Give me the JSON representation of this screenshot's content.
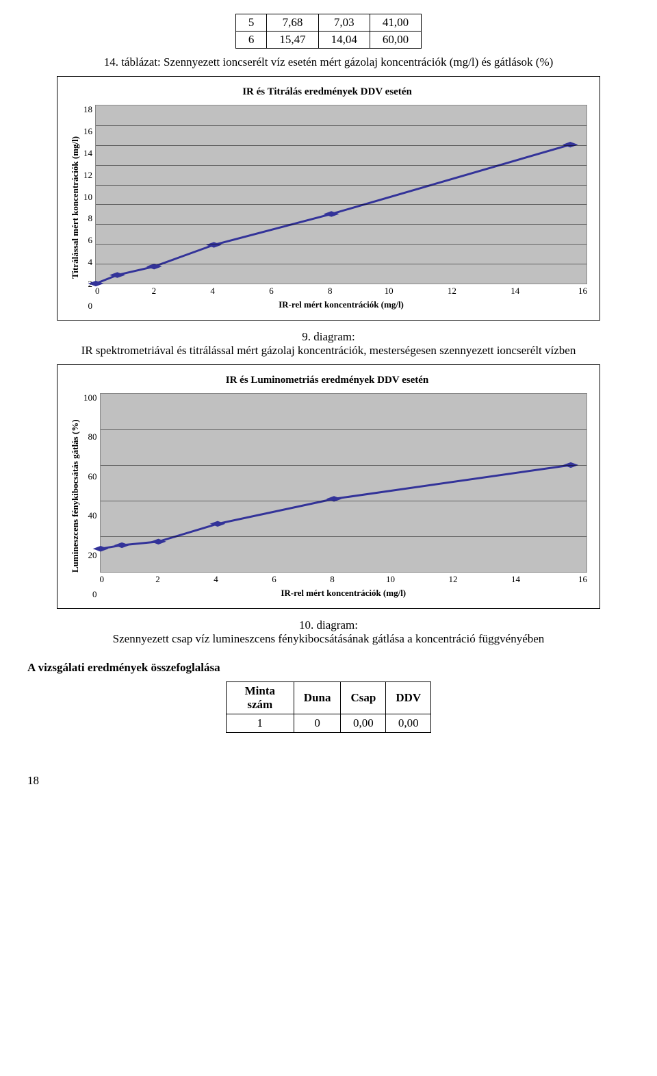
{
  "top_table": {
    "rows": [
      [
        "5",
        "7,68",
        "7,03",
        "41,00"
      ],
      [
        "6",
        "15,47",
        "14,04",
        "60,00"
      ]
    ]
  },
  "caption1": "14. táblázat: Szennyezett ioncserélt víz esetén mért gázolaj koncentrációk (mg/l) és gátlások (%)",
  "chart1": {
    "title": "IR és Titrálás eredmények DDV esetén",
    "ylabel": "Titrálással mért koncentrációk (mg/l)",
    "xlabel": "IR-rel mért koncentrációk (mg/l)",
    "xlim": [
      0,
      16
    ],
    "ylim": [
      0,
      18
    ],
    "xticks": [
      0,
      2,
      4,
      6,
      8,
      10,
      12,
      14,
      16
    ],
    "yticks": [
      0,
      2,
      4,
      6,
      8,
      10,
      12,
      14,
      16,
      18
    ],
    "background": "#c0c0c0",
    "grid_color": "#000000",
    "line_color": "#333399",
    "marker_color": "#333399",
    "points_x": [
      0.0,
      0.7,
      1.9,
      3.85,
      7.68,
      15.47
    ],
    "points_y": [
      0.0,
      0.86,
      1.72,
      3.91,
      7.03,
      14.04
    ]
  },
  "caption2": "9. diagram:\nIR spektrometriával és titrálással mért gázolaj koncentrációk, mesterségesen szennyezett ioncserélt vízben",
  "chart2": {
    "title": "IR és Luminometriás eredmények DDV esetén",
    "ylabel": "Lumineszcens fénykibocsátás gátlás (%)",
    "xlabel": "IR-rel mért koncentrációk (mg/l)",
    "xlim": [
      0,
      16
    ],
    "ylim": [
      0,
      100
    ],
    "xticks": [
      0,
      2,
      4,
      6,
      8,
      10,
      12,
      14,
      16
    ],
    "yticks": [
      0,
      20,
      40,
      60,
      80,
      100
    ],
    "background": "#c0c0c0",
    "grid_color": "#000000",
    "line_color": "#333399",
    "marker_color": "#333399",
    "points_x": [
      0.0,
      0.7,
      1.9,
      3.85,
      7.68,
      15.47
    ],
    "points_y": [
      13,
      15,
      17,
      27,
      41,
      60
    ]
  },
  "caption3": "10. diagram:\nSzennyezett csap víz lumineszcens fénykibocsátásának gátlása a koncentráció függvényében",
  "section_head": "A vizsgálati eredmények összefoglalása",
  "result_table": {
    "headers": [
      "Minta szám",
      "Duna",
      "Csap",
      "DDV"
    ],
    "rows": [
      [
        "1",
        "0",
        "0,00",
        "0,00"
      ]
    ]
  },
  "page_number": "18"
}
